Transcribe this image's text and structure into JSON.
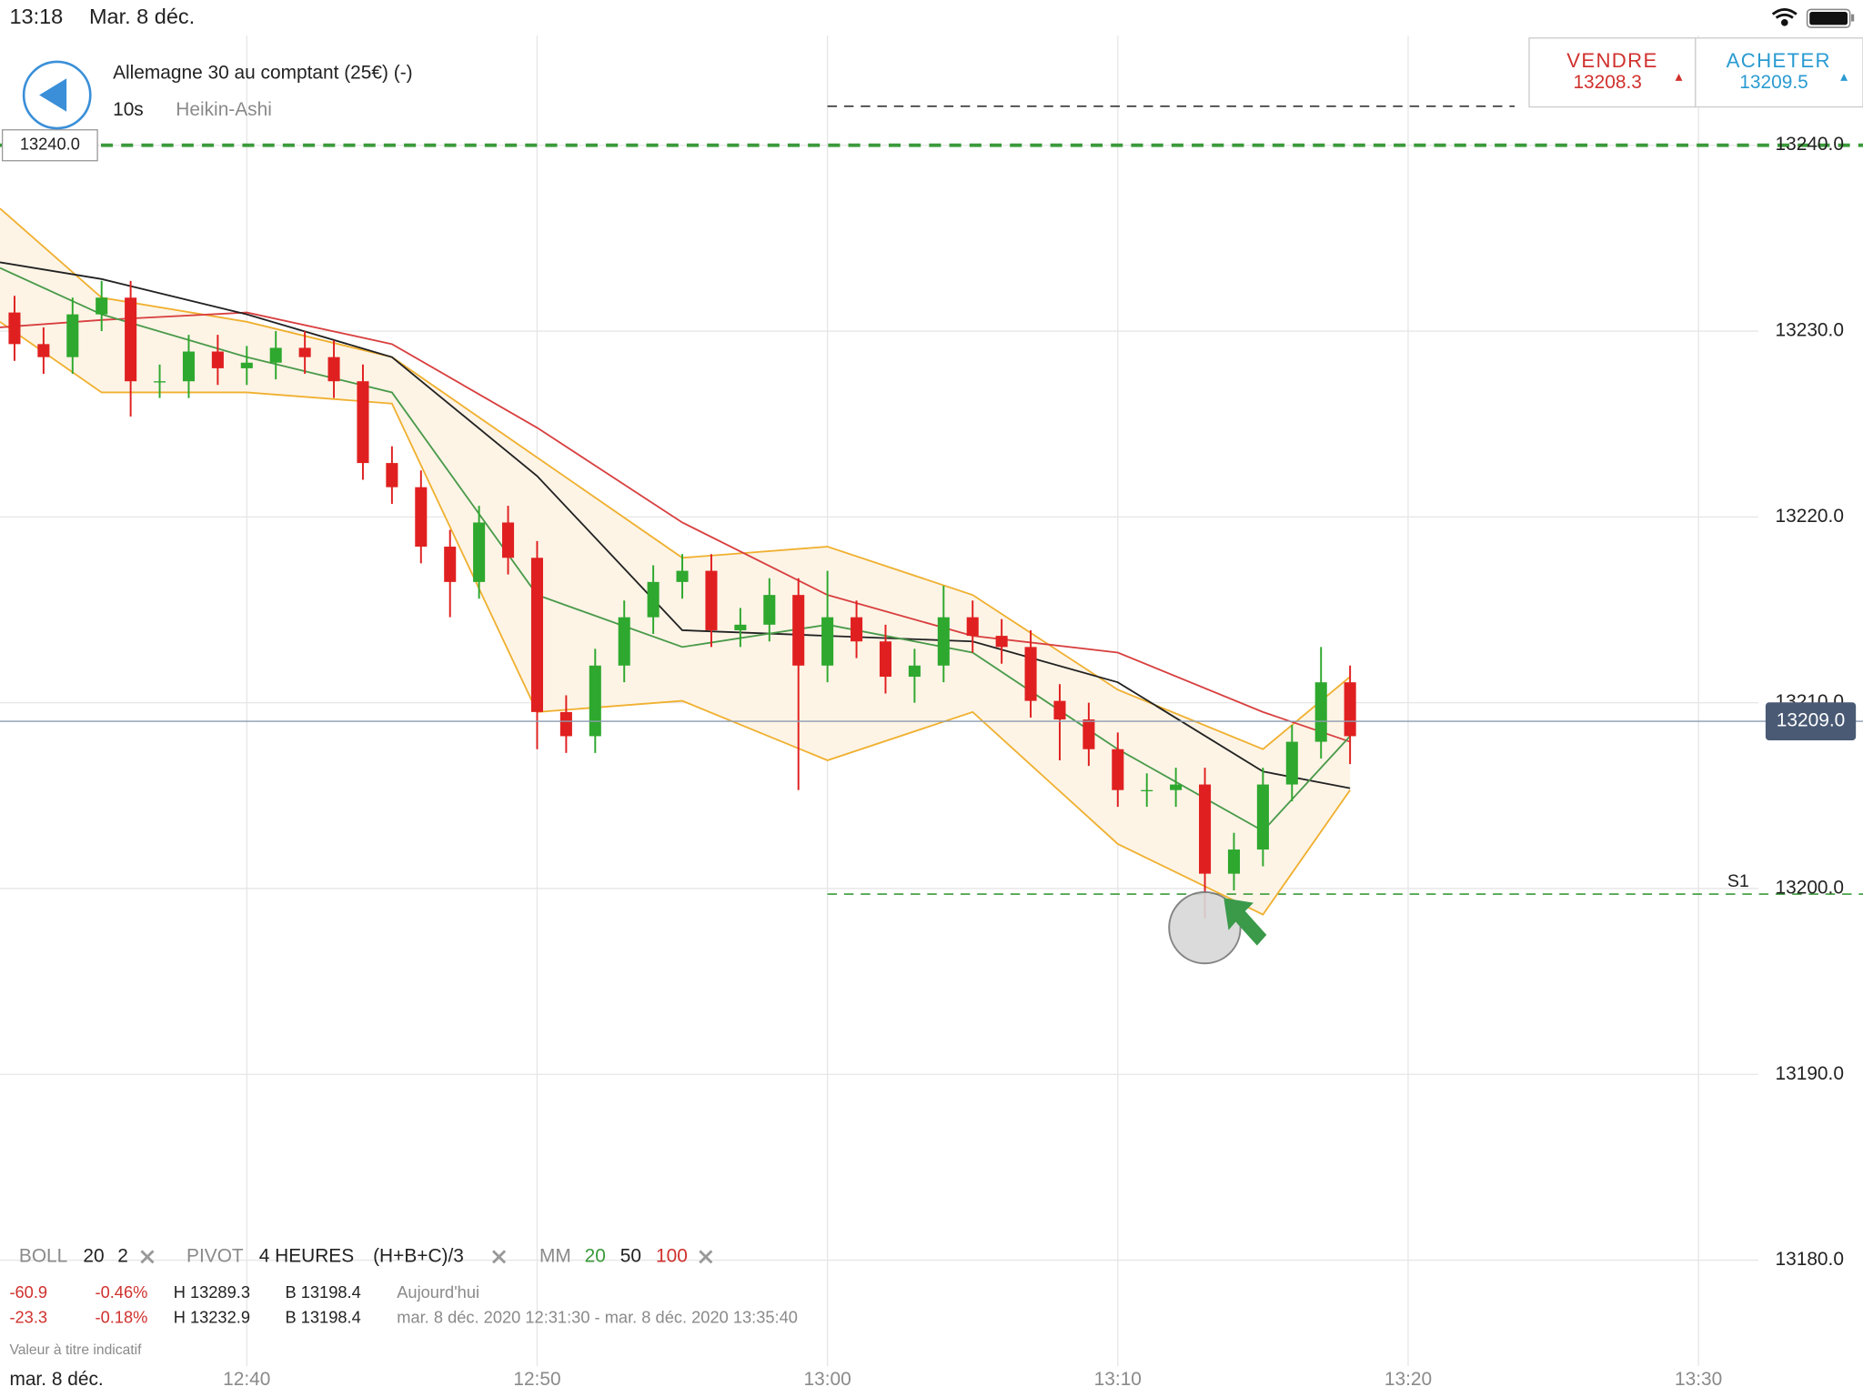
{
  "status_bar": {
    "time": "13:18",
    "date": "Mar. 8 déc."
  },
  "header": {
    "instrument": "Allemagne 30 au comptant (25€) (-)",
    "interval": "10s",
    "chart_style": "Heikin-Ashi"
  },
  "quote": {
    "sell_label": "VENDRE",
    "sell_price": "13208.3",
    "buy_label": "ACHETER",
    "buy_price": "13209.5"
  },
  "indicators": {
    "boll": [
      "BOLL",
      "20",
      "2"
    ],
    "pivot": [
      "PIVOT",
      "4 HEURES",
      "(H+B+C)/3"
    ],
    "mm": {
      "label": "MM",
      "periods": [
        {
          "text": "20",
          "color": "#3a9a3a"
        },
        {
          "text": "50",
          "color": "#222222"
        },
        {
          "text": "100",
          "color": "#d0312d"
        }
      ]
    }
  },
  "stats": [
    [
      "-60.9",
      "-0.46%",
      "H 13289.3",
      "B 13198.4",
      "Aujourd'hui"
    ],
    [
      "-23.3",
      "-0.18%",
      "H 13232.9",
      "B 13198.4",
      "mar. 8 déc. 2020 12:31:30 - mar. 8 déc. 2020 13:35:40"
    ]
  ],
  "disclaimer": "Valeur à titre indicatif",
  "chart_data": {
    "type": "candlestick",
    "x": [
      "12:32",
      "12:33",
      "12:34",
      "12:35",
      "12:36",
      "12:37",
      "12:38",
      "12:39",
      "12:40",
      "12:41",
      "12:42",
      "12:43",
      "12:44",
      "12:45",
      "12:46",
      "12:47",
      "12:48",
      "12:49",
      "12:50",
      "12:51",
      "12:52",
      "12:53",
      "12:54",
      "12:55",
      "12:56",
      "12:57",
      "12:58",
      "12:59",
      "13:00",
      "13:01",
      "13:02",
      "13:03",
      "13:04",
      "13:05",
      "13:06",
      "13:07",
      "13:08",
      "13:09",
      "13:10",
      "13:11",
      "13:12",
      "13:13",
      "13:14",
      "13:15",
      "13:16",
      "13:17",
      "13:18"
    ],
    "open": [
      13231.0,
      13229.3,
      13228.6,
      13230.9,
      13231.8,
      13227.3,
      13227.3,
      13228.9,
      13228.0,
      13228.3,
      13229.1,
      13228.6,
      13227.3,
      13222.9,
      13221.6,
      13218.4,
      13216.5,
      13219.7,
      13217.8,
      13209.5,
      13208.2,
      13212.0,
      13214.6,
      13216.5,
      13217.1,
      13213.9,
      13214.2,
      13215.8,
      13212.0,
      13214.6,
      13213.3,
      13211.4,
      13212.0,
      13214.6,
      13213.6,
      13213.0,
      13210.1,
      13209.1,
      13207.5,
      13205.3,
      13205.3,
      13205.6,
      13200.8,
      13202.1,
      13205.6,
      13207.9,
      13211.1
    ],
    "high": [
      13231.9,
      13230.2,
      13231.8,
      13232.7,
      13232.7,
      13228.2,
      13229.8,
      13229.8,
      13229.2,
      13230.0,
      13230.0,
      13229.5,
      13228.2,
      13223.8,
      13222.5,
      13219.3,
      13220.6,
      13220.6,
      13218.7,
      13210.4,
      13212.9,
      13215.5,
      13217.4,
      13218.0,
      13218.0,
      13215.1,
      13216.7,
      13216.7,
      13217.1,
      13215.5,
      13214.2,
      13212.9,
      13216.3,
      13215.5,
      13214.5,
      13213.9,
      13211.0,
      13210.0,
      13208.4,
      13206.2,
      13206.5,
      13206.5,
      13203.0,
      13206.5,
      13208.8,
      13213.0,
      13212.0
    ],
    "low": [
      13228.4,
      13227.7,
      13227.7,
      13230.0,
      13225.4,
      13226.4,
      13226.4,
      13227.1,
      13227.1,
      13227.4,
      13227.7,
      13226.4,
      13222.0,
      13220.7,
      13217.5,
      13214.6,
      13215.6,
      13216.9,
      13207.5,
      13207.3,
      13207.3,
      13211.1,
      13213.7,
      13215.6,
      13213.0,
      13213.0,
      13213.3,
      13205.3,
      13211.1,
      13212.4,
      13210.5,
      13210.0,
      13211.1,
      13212.7,
      13212.1,
      13209.2,
      13206.9,
      13206.6,
      13204.4,
      13204.4,
      13204.4,
      13198.4,
      13199.9,
      13201.2,
      13204.7,
      13207.0,
      13206.7
    ],
    "close": [
      13229.3,
      13228.6,
      13230.9,
      13231.8,
      13227.3,
      13227.3,
      13228.9,
      13228.0,
      13228.3,
      13229.1,
      13228.6,
      13227.3,
      13222.9,
      13221.6,
      13218.4,
      13216.5,
      13219.7,
      13217.8,
      13209.5,
      13208.2,
      13212.0,
      13214.6,
      13216.5,
      13217.1,
      13213.9,
      13214.2,
      13215.8,
      13212.0,
      13214.6,
      13213.3,
      13211.4,
      13212.0,
      13214.6,
      13213.6,
      13213.0,
      13210.1,
      13209.1,
      13207.5,
      13205.3,
      13205.3,
      13205.6,
      13200.8,
      13202.1,
      13205.6,
      13207.9,
      13211.1,
      13208.2
    ],
    "up_color": "#2ea82e",
    "down_color": "#e02020",
    "xlim": [
      "12:31:30",
      "13:35:40"
    ],
    "xticks": [
      "12:40",
      "12:50",
      "13:00",
      "13:10",
      "13:20",
      "13:30"
    ],
    "x_date": "mar. 8 déc.",
    "ylim": [
      13174.3,
      13245.9
    ],
    "yticks": [
      {
        "value": 13180,
        "label": "13180.0"
      },
      {
        "value": 13190,
        "label": "13190.0"
      },
      {
        "value": 13200,
        "label": "13200.0"
      },
      {
        "value": 13210,
        "label": "13210.0"
      },
      {
        "value": 13220,
        "label": "13220.0"
      },
      {
        "value": 13230,
        "label": "13230.0"
      },
      {
        "value": 13240,
        "label": "13240.0"
      }
    ],
    "grid": true,
    "band_color": "#fdf4e6",
    "overlays": [
      {
        "x": [
          "12:31:30",
          "12:35",
          "12:40",
          "12:45",
          "12:50",
          "12:55",
          "13:00",
          "13:05",
          "13:10",
          "13:15",
          "13:18"
        ],
        "values": [
          13236.6,
          13231.8,
          13230.5,
          13228.6,
          13223.2,
          13217.8,
          13218.4,
          13215.8,
          13210.7,
          13207.5,
          13211.4
        ],
        "color": "#f0b030",
        "band": "upper"
      },
      {
        "x": [
          "12:31:30",
          "12:35",
          "12:40",
          "12:45",
          "12:50",
          "12:55",
          "13:00",
          "13:05",
          "13:10",
          "13:15",
          "13:18"
        ],
        "values": [
          13230.5,
          13226.7,
          13226.7,
          13226.1,
          13209.5,
          13210.1,
          13206.9,
          13209.5,
          13202.4,
          13198.6,
          13205.3
        ],
        "color": "#f0b030",
        "band": "lower"
      },
      {
        "x": [
          "12:31:30",
          "12:35",
          "12:40",
          "12:45",
          "12:50",
          "12:55",
          "13:00",
          "13:05",
          "13:10",
          "13:15",
          "13:18"
        ],
        "values": [
          13230.2,
          13230.6,
          13231.0,
          13229.3,
          13224.8,
          13219.7,
          13215.8,
          13213.6,
          13212.7,
          13209.5,
          13207.9
        ],
        "color": "#d84040"
      },
      {
        "x": [
          "12:31:30",
          "12:35",
          "12:40",
          "12:45",
          "12:50",
          "12:55",
          "13:00",
          "13:05",
          "13:10",
          "13:15",
          "13:18"
        ],
        "values": [
          13233.7,
          13232.8,
          13230.9,
          13228.6,
          13222.2,
          13213.9,
          13213.6,
          13213.3,
          13211.1,
          13206.3,
          13205.4
        ],
        "color": "#222222"
      },
      {
        "x": [
          "12:31:30",
          "12:35",
          "12:40",
          "12:45",
          "12:50",
          "12:55",
          "13:00",
          "13:05",
          "13:10",
          "13:15",
          "13:18"
        ],
        "values": [
          13233.4,
          13230.9,
          13228.6,
          13226.7,
          13215.8,
          13213.0,
          13214.2,
          13212.7,
          13207.5,
          13203.1,
          13208.2
        ],
        "color": "#4a9a4a"
      }
    ],
    "levels": [
      {
        "value": 13240,
        "label": "13240.0",
        "color": "#3a9a3a",
        "width": 3
      },
      {
        "value": 13199.7,
        "label": "S1",
        "color": "#3a9a3a",
        "width": 1.2,
        "from": "13:00"
      },
      {
        "value": 13242.1,
        "color": "#333333",
        "width": 1.2,
        "from": "13:00",
        "to": "13:23:40"
      }
    ],
    "last": {
      "value": 13209.0,
      "label": "13209.0",
      "color": "#4a5a75"
    }
  }
}
